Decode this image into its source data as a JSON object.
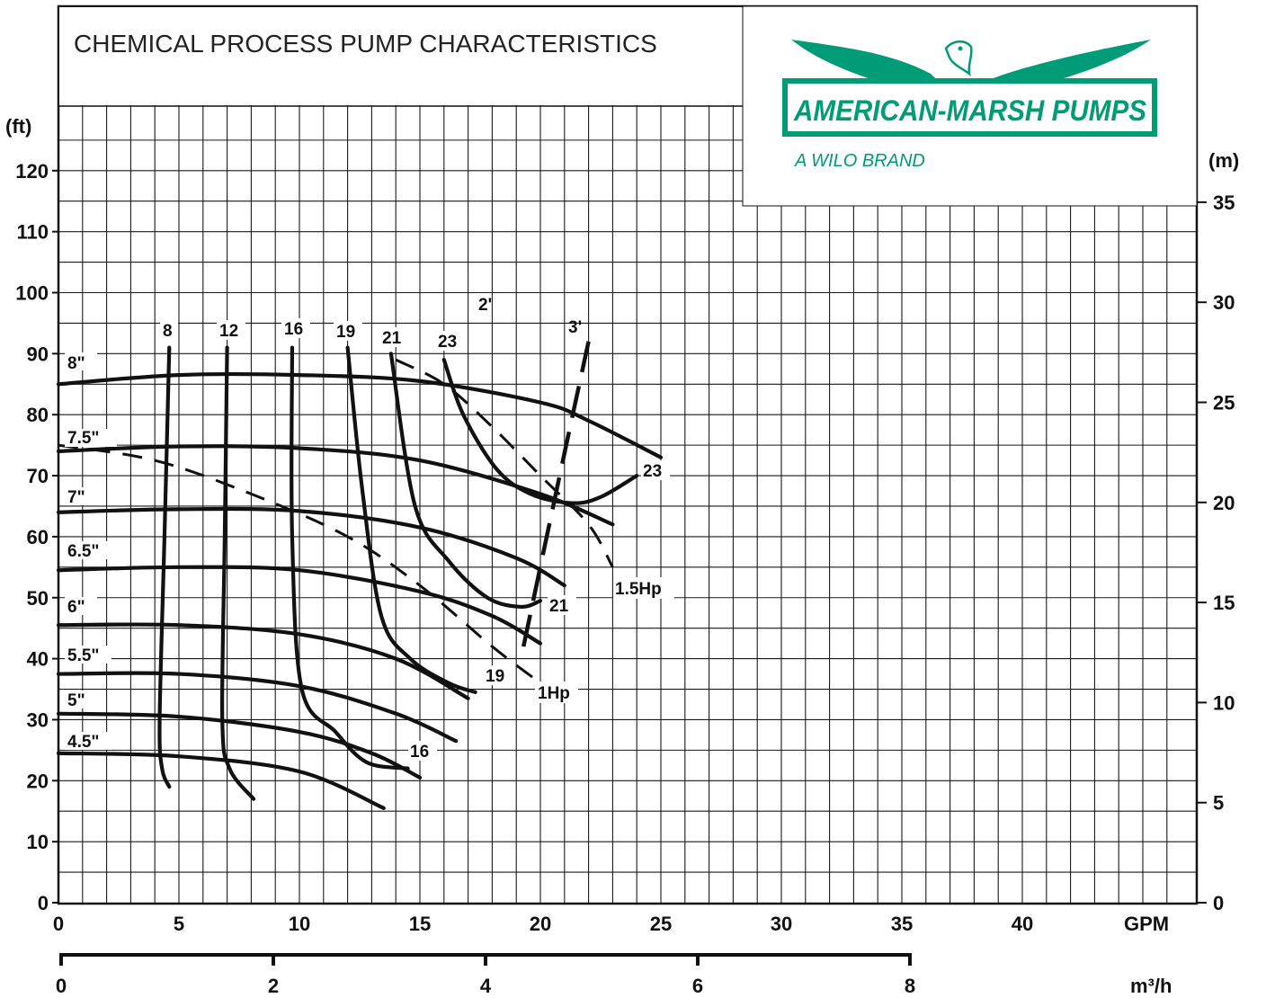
{
  "title": "CHEMICAL PROCESS PUMP CHARACTERISTICS",
  "logo": {
    "name": "AMERICAN-MARSH PUMPS",
    "tagline": "A WILO BRAND",
    "icon": "eagle-icon",
    "color": "#009b77"
  },
  "chart_data": {
    "type": "line",
    "title": "CHEMICAL PROCESS PUMP CHARACTERISTICS",
    "x_axis": {
      "unit": "GPM",
      "range": [
        0,
        47
      ],
      "ticks": [
        0,
        5,
        10,
        15,
        20,
        25,
        30,
        35,
        40
      ],
      "tick_labels": [
        "0",
        "5",
        "10",
        "15",
        "20",
        "25",
        "30",
        "35",
        "40"
      ]
    },
    "x2_axis": {
      "unit": "m³/h",
      "range": [
        0,
        8
      ],
      "ticks": [
        0,
        2,
        4,
        6,
        8
      ],
      "tick_labels": [
        "0",
        "2",
        "4",
        "6",
        "8"
      ]
    },
    "y_axis": {
      "unit": "(ft)",
      "range": [
        0,
        130
      ],
      "ticks": [
        0,
        10,
        20,
        30,
        40,
        50,
        60,
        70,
        80,
        90,
        100,
        110,
        120
      ],
      "tick_labels": [
        "0",
        "10",
        "20",
        "30",
        "40",
        "50",
        "60",
        "70",
        "80",
        "90",
        "100",
        "110",
        "120"
      ]
    },
    "y2_axis": {
      "unit": "(m)",
      "range": [
        0,
        40
      ],
      "ticks": [
        0,
        5,
        10,
        15,
        20,
        25,
        30,
        35
      ],
      "tick_labels": [
        "0",
        "5",
        "10",
        "15",
        "20",
        "25",
        "30",
        "35"
      ]
    },
    "grid": true,
    "impeller_curves": [
      {
        "name": "8\"",
        "x": [
          0,
          5,
          10,
          15,
          20,
          22,
          25
        ],
        "y": [
          85,
          86.5,
          86.5,
          85.5,
          82,
          79,
          73
        ]
      },
      {
        "name": "7.5\"",
        "x": [
          0,
          5,
          10,
          15,
          20,
          23
        ],
        "y": [
          74,
          74.8,
          74.5,
          72.5,
          67,
          62
        ]
      },
      {
        "name": "7\"",
        "x": [
          0,
          5,
          10,
          15,
          19,
          21
        ],
        "y": [
          64,
          64.5,
          64.2,
          61.5,
          56.5,
          52
        ]
      },
      {
        "name": "6.5\"",
        "x": [
          0,
          5,
          10,
          15,
          18,
          20
        ],
        "y": [
          54.5,
          55,
          54.5,
          51,
          47,
          42.5
        ]
      },
      {
        "name": "6\"",
        "x": [
          0,
          5,
          10,
          14,
          17
        ],
        "y": [
          45.5,
          45.5,
          44,
          40,
          33.5
        ]
      },
      {
        "name": "5.5\"",
        "x": [
          0,
          5,
          10,
          14,
          16.5
        ],
        "y": [
          37.5,
          37.5,
          35.5,
          31,
          26.5
        ]
      },
      {
        "name": "5\"",
        "x": [
          0,
          5,
          10,
          13,
          15
        ],
        "y": [
          31,
          30.5,
          28,
          24.5,
          20.5
        ]
      },
      {
        "name": "4.5\"",
        "x": [
          0,
          5,
          10,
          13.5
        ],
        "y": [
          24.5,
          24,
          21.5,
          15.5
        ]
      }
    ],
    "npsh_curves": [
      {
        "name": "8",
        "x": [
          4.6,
          4.4,
          4.2,
          4.3,
          4.6
        ],
        "y": [
          91,
          60,
          30,
          22,
          19
        ]
      },
      {
        "name": "12",
        "x": [
          7,
          6.9,
          6.8,
          7.1,
          8.1
        ],
        "y": [
          91,
          60,
          30,
          22,
          17
        ]
      },
      {
        "name": "16",
        "x": [
          9.7,
          9.7,
          10.1,
          11.5,
          12.8,
          14.5
        ],
        "y": [
          91,
          60,
          35,
          28,
          23,
          22
        ]
      },
      {
        "name": "19",
        "x": [
          12,
          12.6,
          13.4,
          14.6,
          16.2,
          17.3
        ],
        "y": [
          91,
          68,
          47,
          40,
          36,
          34.5
        ]
      },
      {
        "name": "21",
        "x": [
          13.8,
          14.8,
          16.2,
          17.8,
          19.2,
          20
        ],
        "y": [
          90,
          65,
          56,
          50,
          48.5,
          49.5
        ]
      },
      {
        "name": "23",
        "x": [
          16,
          16.8,
          18.2,
          19.6,
          21.3,
          22.5,
          24
        ],
        "y": [
          89,
          80,
          71,
          67,
          65.5,
          66.5,
          70
        ]
      }
    ],
    "horsepower_curves": [
      {
        "name": "1Hp",
        "x": [
          0,
          4,
          8,
          12,
          15,
          18,
          20
        ],
        "y": [
          75,
          72.5,
          67,
          60,
          52,
          42,
          36
        ]
      },
      {
        "name": "1.5Hp",
        "x": [
          14,
          16,
          18,
          20,
          22,
          23
        ],
        "y": [
          89,
          85,
          78,
          70,
          62,
          55
        ]
      }
    ],
    "efficiency_line": {
      "name": "3'",
      "x": [
        19.3,
        20.8,
        22
      ],
      "y": [
        42,
        70,
        92
      ]
    },
    "annotations": [
      "2'",
      "3'"
    ],
    "legend": "none"
  }
}
